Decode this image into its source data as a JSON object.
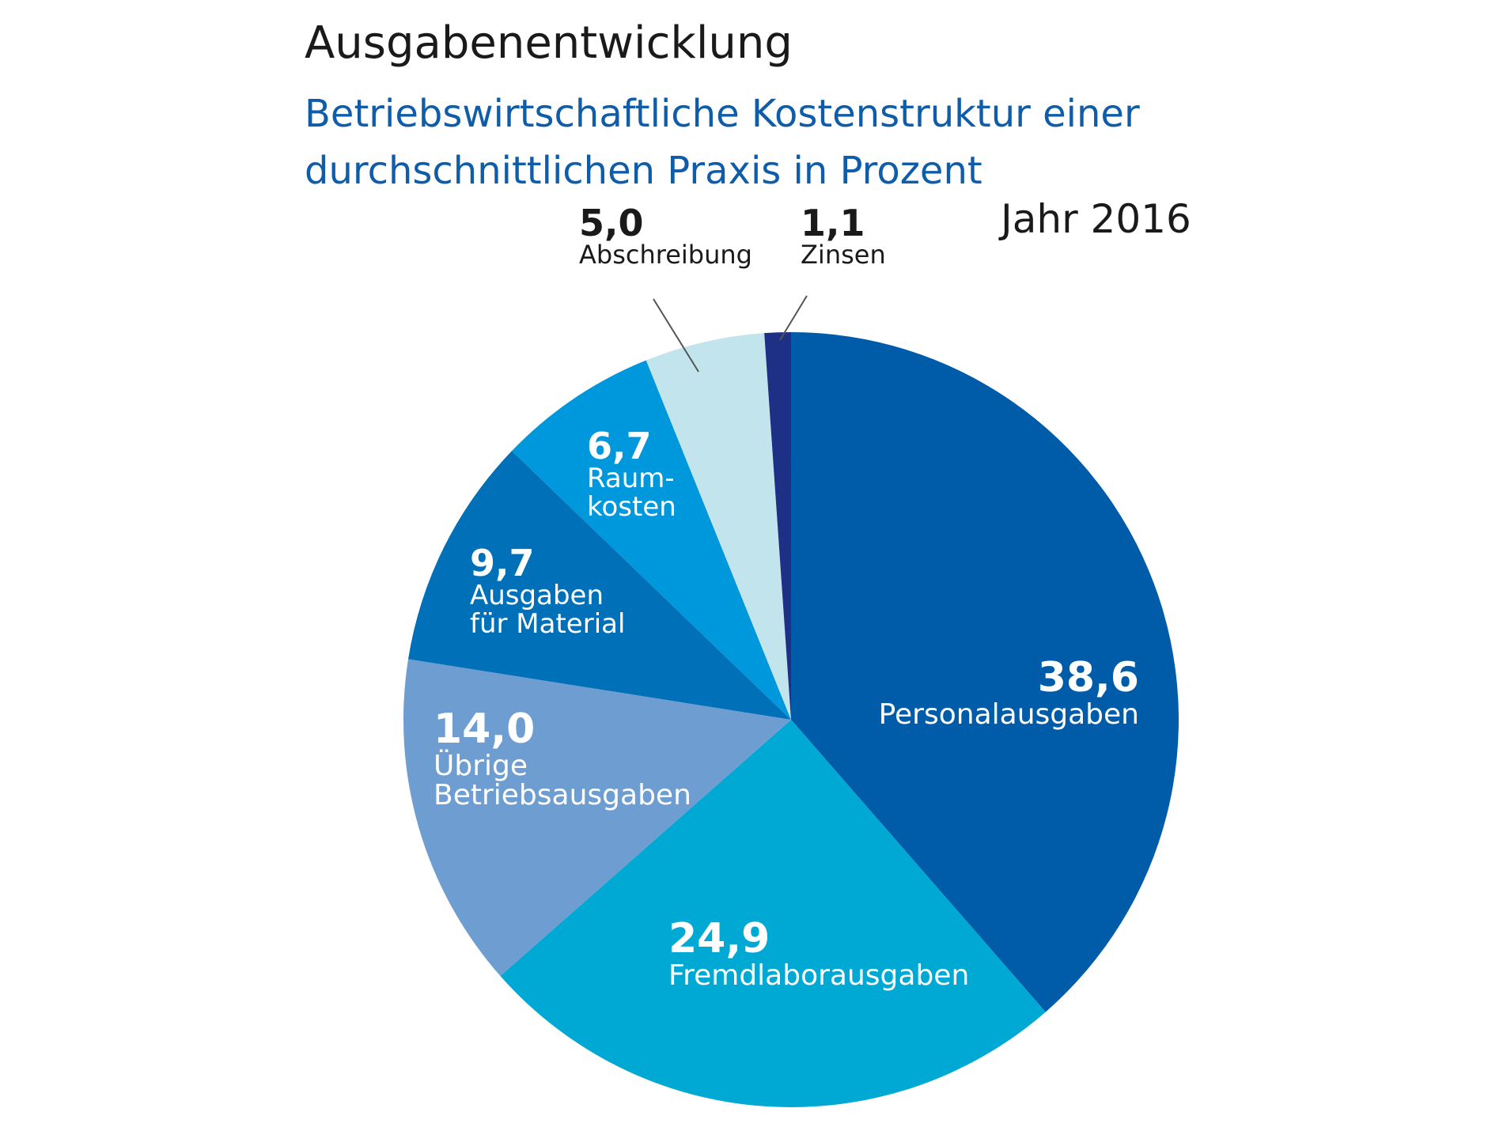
{
  "chart_data": {
    "type": "pie",
    "title": "Ausgabenentwicklung",
    "subtitle": "Betriebswirtschaftliche Kostenstruktur einer durchschnittlichen Praxis in Prozent",
    "year_label": "Jahr 2016",
    "unit": "Prozent",
    "slices": [
      {
        "name": "Personalausgaben",
        "value": 38.6,
        "value_label": "38,6",
        "color": "#005ca9"
      },
      {
        "name": "Fremdlaborausgaben",
        "value": 24.9,
        "value_label": "24,9",
        "color": "#00a8d4"
      },
      {
        "name": "Übrige Betriebsausgaben",
        "value": 14.0,
        "value_label": "14,0",
        "color": "#6e9dd1"
      },
      {
        "name": "Ausgaben für Material",
        "value": 9.7,
        "value_label": "9,7",
        "color": "#0070b8"
      },
      {
        "name": "Raumkosten",
        "value": 6.7,
        "value_label": "6,7",
        "color": "#0098dc"
      },
      {
        "name": "Abschreibung",
        "value": 5.0,
        "value_label": "5,0",
        "color": "#c2e4ec"
      },
      {
        "name": "Zinsen",
        "value": 1.1,
        "value_label": "1,1",
        "color": "#1e2f86"
      }
    ],
    "slice_display_names": [
      "Personalausgaben",
      "Fremdlaborausgaben",
      "Übrige\nBetriebsausgaben",
      "Ausgaben\nfür Material",
      "Raum-\nkosten",
      "Abschreibung",
      "Zinsen"
    ],
    "start_direction": "top",
    "orientation": "clockwise"
  }
}
